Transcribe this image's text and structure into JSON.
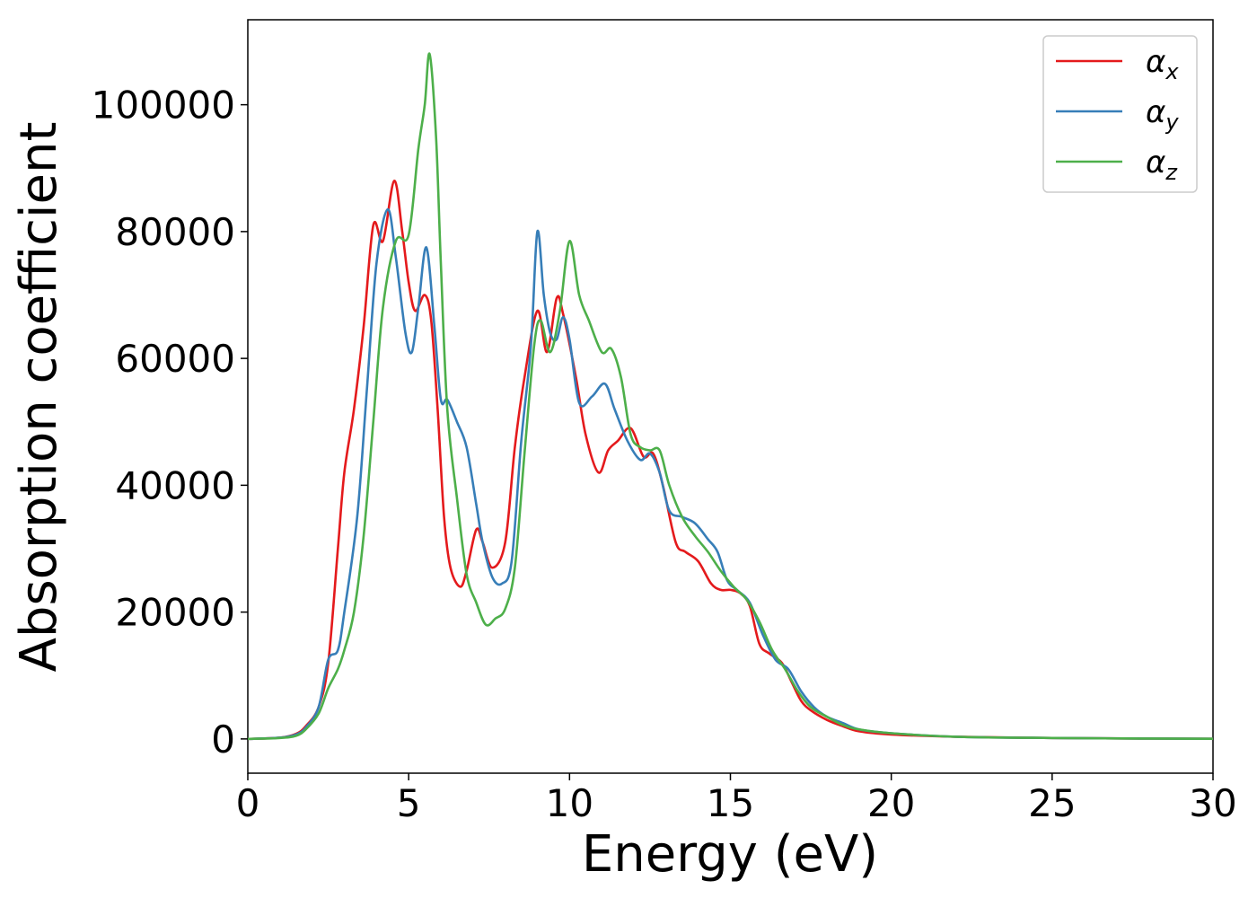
{
  "chart_data": {
    "type": "line",
    "title": "",
    "xlabel": "Energy (eV)",
    "ylabel": "Absorption coefficient",
    "xlim": [
      0,
      30
    ],
    "ylim": [
      -5400,
      113400
    ],
    "xticks": [
      0,
      5,
      10,
      15,
      20,
      25,
      30
    ],
    "yticks": [
      0,
      20000,
      40000,
      60000,
      80000,
      100000
    ],
    "grid": false,
    "legend_position": "top-right",
    "series": [
      {
        "name": "α_x",
        "label_base": "α",
        "label_sub": "x",
        "color": "#e41a1c",
        "x": [
          0,
          1,
          1.5,
          1.8,
          2.2,
          2.5,
          2.8,
          3.0,
          3.3,
          3.6,
          3.9,
          4.2,
          4.55,
          4.8,
          5.0,
          5.2,
          5.5,
          5.7,
          5.9,
          6.1,
          6.3,
          6.6,
          6.8,
          7.1,
          7.3,
          7.6,
          8.0,
          8.3,
          8.6,
          9.0,
          9.3,
          9.6,
          9.8,
          10.2,
          10.5,
          10.9,
          11.2,
          11.5,
          11.9,
          12.3,
          12.6,
          12.9,
          13.3,
          13.6,
          14.0,
          14.4,
          14.7,
          15.0,
          15.3,
          15.6,
          15.9,
          16.2,
          16.6,
          16.9,
          17.2,
          17.5,
          18.0,
          18.5,
          19.0,
          20.0,
          22.0,
          25.0,
          28.0,
          30.0
        ],
        "y": [
          0,
          200,
          800,
          2000,
          5000,
          12000,
          30000,
          42000,
          52000,
          65000,
          81000,
          78500,
          88000,
          80000,
          72000,
          67500,
          70000,
          66000,
          52000,
          35000,
          27000,
          24000,
          26500,
          33000,
          31000,
          27000,
          31000,
          46000,
          57000,
          67500,
          61000,
          69500,
          67000,
          57000,
          48000,
          42000,
          45500,
          47000,
          49000,
          44500,
          45000,
          40000,
          31000,
          29500,
          28000,
          24500,
          23500,
          23500,
          23000,
          21000,
          15000,
          13500,
          12000,
          9000,
          6000,
          4500,
          3000,
          2000,
          1200,
          700,
          350,
          150,
          60,
          30
        ]
      },
      {
        "name": "α_y",
        "label_base": "α",
        "label_sub": "y",
        "color": "#377eb8",
        "x": [
          0,
          1,
          1.5,
          1.8,
          2.2,
          2.5,
          2.8,
          3.0,
          3.4,
          3.7,
          4.0,
          4.35,
          4.6,
          4.9,
          5.1,
          5.3,
          5.55,
          5.8,
          6.0,
          6.2,
          6.5,
          6.8,
          7.1,
          7.3,
          7.6,
          7.9,
          8.2,
          8.5,
          8.8,
          9.0,
          9.2,
          9.4,
          9.6,
          9.8,
          10.0,
          10.3,
          10.7,
          11.1,
          11.4,
          11.8,
          12.2,
          12.5,
          12.8,
          13.1,
          13.5,
          13.9,
          14.3,
          14.6,
          14.9,
          15.2,
          15.6,
          16.0,
          16.4,
          16.8,
          17.2,
          17.6,
          18.0,
          18.5,
          19.0,
          20.0,
          22.0,
          25.0,
          28.0,
          30.0
        ],
        "y": [
          0,
          200,
          700,
          1800,
          5000,
          12500,
          14000,
          20000,
          35000,
          55000,
          75000,
          83500,
          76000,
          64000,
          61000,
          68000,
          77500,
          65000,
          53500,
          53500,
          50000,
          46000,
          37000,
          31000,
          25500,
          24500,
          28000,
          47000,
          62000,
          80000,
          70000,
          64000,
          63000,
          66500,
          63000,
          53000,
          54000,
          56000,
          52000,
          47000,
          44000,
          45000,
          42000,
          36000,
          35000,
          34000,
          31500,
          29500,
          25000,
          23500,
          21500,
          16500,
          12500,
          11000,
          7500,
          5000,
          3500,
          2500,
          1500,
          900,
          350,
          150,
          60,
          30
        ]
      },
      {
        "name": "α_z",
        "label_base": "α",
        "label_sub": "z",
        "color": "#4daf4a",
        "x": [
          0,
          1,
          1.5,
          1.8,
          2.2,
          2.5,
          2.8,
          3.0,
          3.3,
          3.6,
          3.9,
          4.2,
          4.6,
          5.0,
          5.3,
          5.5,
          5.65,
          5.85,
          6.0,
          6.2,
          6.5,
          6.8,
          7.1,
          7.4,
          7.7,
          8.0,
          8.3,
          8.6,
          8.9,
          9.1,
          9.4,
          9.7,
          10.0,
          10.3,
          10.6,
          11.0,
          11.3,
          11.6,
          11.9,
          12.2,
          12.5,
          12.8,
          13.1,
          13.5,
          13.9,
          14.3,
          14.7,
          15.1,
          15.5,
          15.9,
          16.3,
          16.7,
          17.1,
          17.5,
          18.0,
          18.5,
          19.0,
          20.0,
          22.0,
          25.0,
          28.0,
          30.0
        ],
        "y": [
          0,
          150,
          500,
          1500,
          4000,
          8000,
          11000,
          14000,
          20000,
          32000,
          50000,
          68000,
          78500,
          79500,
          93000,
          100000,
          108000,
          95000,
          75000,
          52000,
          38000,
          26000,
          21500,
          18000,
          19000,
          20500,
          27000,
          45000,
          62000,
          66000,
          61000,
          67500,
          78500,
          70000,
          66000,
          61000,
          61500,
          57000,
          48000,
          46000,
          45500,
          45500,
          40000,
          35000,
          32000,
          29500,
          26500,
          24000,
          22000,
          18500,
          14000,
          11000,
          7500,
          5000,
          3500,
          2200,
          1500,
          900,
          350,
          150,
          60,
          30
        ]
      }
    ]
  }
}
